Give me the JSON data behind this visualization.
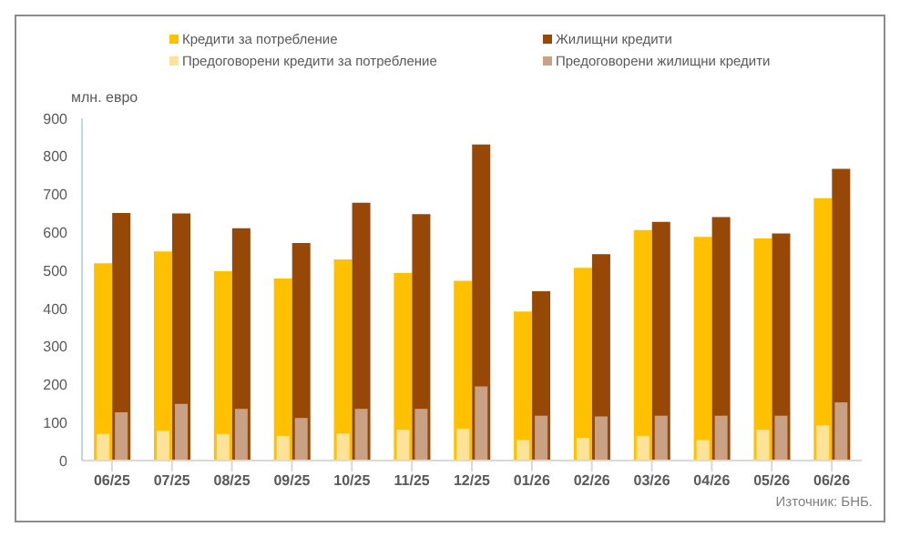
{
  "chart_data": {
    "type": "bar",
    "ylabel": "млн. евро",
    "legend": "top",
    "annotations": [
      "Източник: БНБ."
    ],
    "categories": [
      "06/25",
      "07/25",
      "08/25",
      "09/25",
      "10/25",
      "11/25",
      "12/25",
      "01/26",
      "02/26",
      "03/26",
      "04/26",
      "05/26",
      "06/26"
    ],
    "ylim": [
      0,
      900
    ],
    "yticks": [
      0,
      100,
      200,
      300,
      400,
      500,
      600,
      700,
      800,
      900
    ],
    "series": [
      {
        "name": "Кредити за потребление",
        "color": "#ffc000",
        "values": [
          519,
          550,
          498,
          479,
          529,
          493,
          473,
          392,
          507,
          606,
          588,
          584,
          690
        ]
      },
      {
        "name": "Жилищни кредити",
        "color": "#984806",
        "values": [
          651,
          650,
          611,
          572,
          678,
          648,
          831,
          445,
          543,
          628,
          640,
          597,
          767
        ]
      },
      {
        "name": "Предоговорени кредити за потребление",
        "color": "#fde29a",
        "values": [
          70,
          78,
          70,
          65,
          71,
          81,
          84,
          54,
          60,
          65,
          54,
          81,
          93
        ]
      },
      {
        "name": "Предоговорени жилищни кредити",
        "color": "#c9a285",
        "values": [
          127,
          149,
          136,
          112,
          136,
          136,
          195,
          118,
          116,
          118,
          118,
          118,
          153
        ]
      }
    ]
  }
}
